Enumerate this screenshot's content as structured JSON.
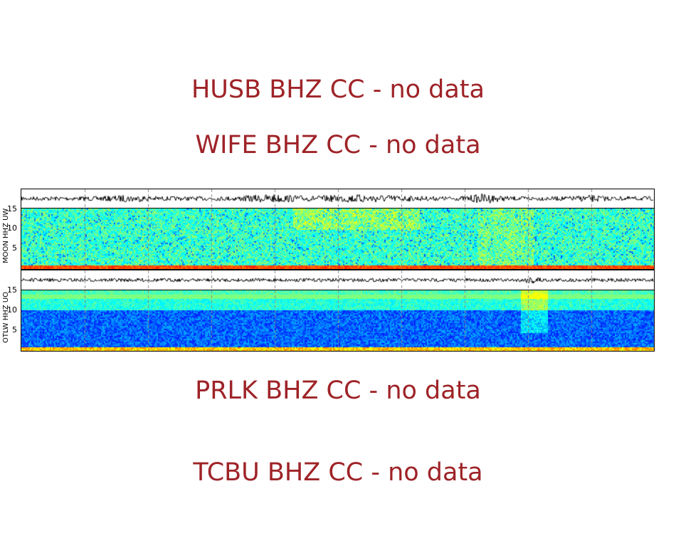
{
  "no_data": [
    "HUSB BHZ CC - no data",
    "WIFE BHZ CC - no data",
    "PRLK BHZ CC - no data",
    "TCBU BHZ CC - no data"
  ],
  "chart_data": [
    {
      "type": "heatmap",
      "station_label": "MOON HHZ UW",
      "ylabel": "MOON HHZ UW",
      "yticks": [
        "15",
        "10",
        "5"
      ],
      "ylim": [
        0,
        16
      ],
      "colormap": "jet",
      "has_waveform": true,
      "grid": "vertical dashed"
    },
    {
      "type": "heatmap",
      "station_label": "OTLW HHZ UO",
      "ylabel": "OTLW HHZ UO",
      "yticks": [
        "15",
        "10",
        "5"
      ],
      "ylim": [
        0,
        16
      ],
      "colormap": "jet",
      "has_waveform": true,
      "grid": "vertical dashed"
    }
  ],
  "colors": {
    "no_data_text": "#9e2327"
  }
}
